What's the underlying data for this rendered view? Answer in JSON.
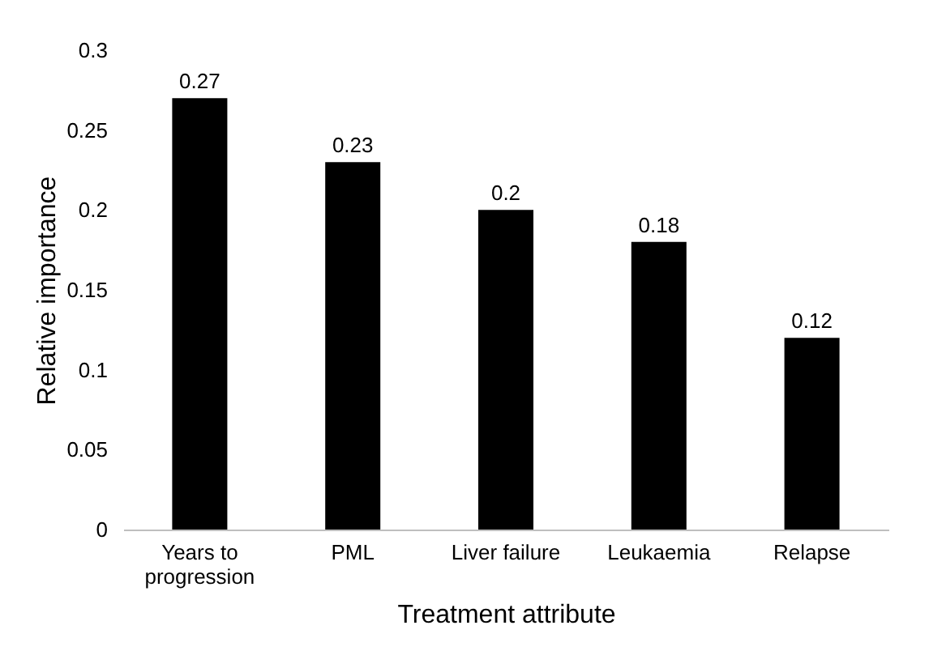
{
  "chart_data": {
    "type": "bar",
    "xlabel": "Treatment attribute",
    "ylabel": "Relative importance",
    "categories": [
      "Years to progression",
      "PML",
      "Liver failure",
      "Leukaemia",
      "Relapse"
    ],
    "values": [
      0.27,
      0.23,
      0.2,
      0.18,
      0.12
    ],
    "color": "#000000",
    "ylim": [
      0,
      0.3
    ],
    "yticks": [
      0,
      0.05,
      0.1,
      0.15,
      0.2,
      0.25,
      0.3
    ],
    "grid": false,
    "data_labels": true
  }
}
